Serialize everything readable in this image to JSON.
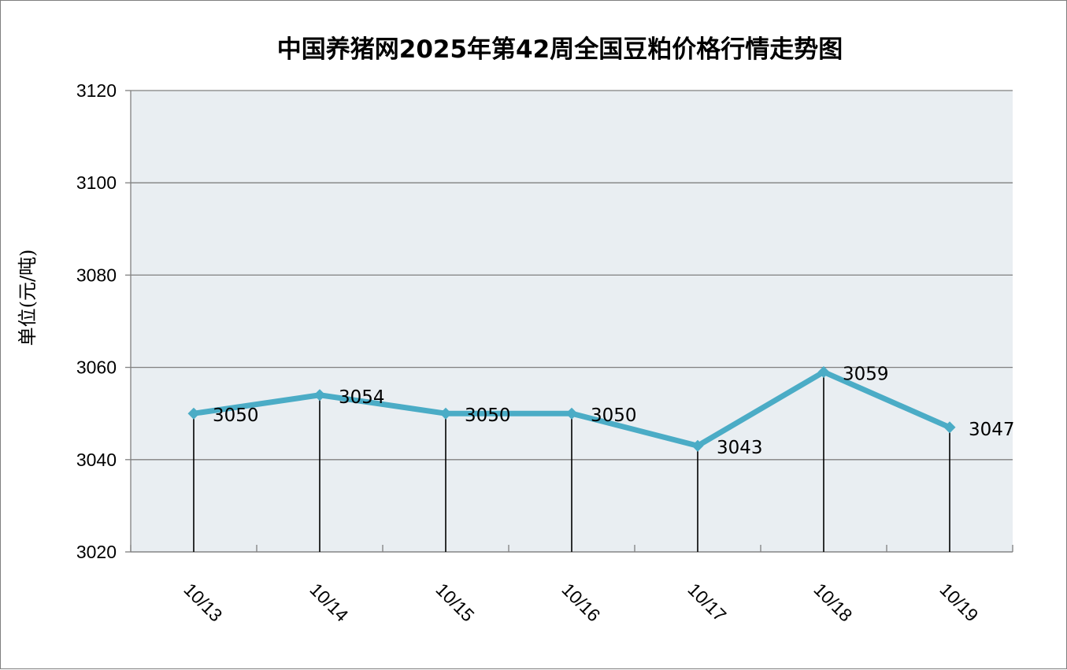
{
  "chart_data": {
    "type": "line",
    "title": "中国养猪网2025年第42周全国豆粕价格行情走势图",
    "xlabel": "",
    "ylabel": "单位(元/吨)",
    "categories": [
      "10/13",
      "10/14",
      "10/15",
      "10/16",
      "10/17",
      "10/18",
      "10/19"
    ],
    "series": [
      {
        "values": [
          3050,
          3054,
          3050,
          3050,
          3043,
          3059,
          3047
        ]
      }
    ],
    "data_labels": [
      "3050",
      "3054",
      "3050",
      "3050",
      "3043",
      "3059",
      "3047"
    ],
    "ylim": [
      3020,
      3120
    ],
    "yticks": [
      "3020",
      "3040",
      "3060",
      "3080",
      "3100",
      "3120"
    ],
    "grid": true,
    "drop_lines": true,
    "legend": "none",
    "colors": {
      "line": "#4bacc6",
      "plot_background": "#e9eef2",
      "gridline": "#808080",
      "drop_line": "#000000"
    }
  }
}
